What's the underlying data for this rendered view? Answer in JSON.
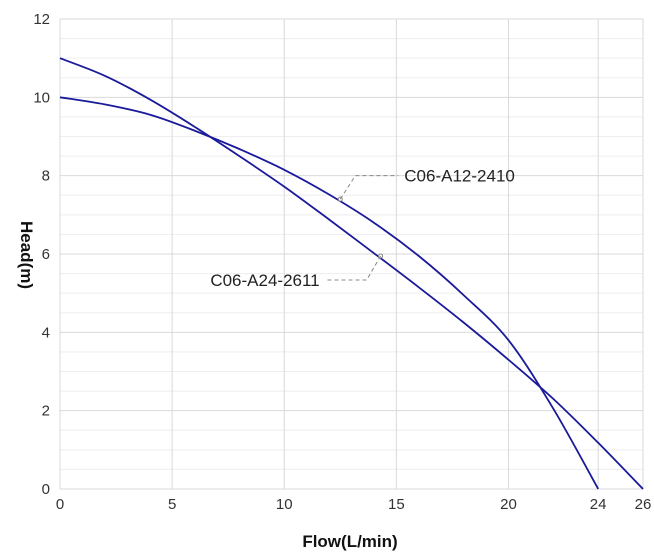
{
  "chart_data": {
    "type": "line",
    "xlabel": "Flow(L/min)",
    "ylabel": "Head(m)",
    "xlim": [
      0,
      26
    ],
    "ylim": [
      0,
      12
    ],
    "x_ticks": [
      0,
      5,
      10,
      15,
      20,
      24,
      26
    ],
    "y_ticks": [
      0,
      2,
      4,
      6,
      8,
      10,
      12
    ],
    "grid": true,
    "colors": {
      "series": "#1a1a9a",
      "grid_major": "#d9d9d9",
      "grid_minor": "#eeeeee",
      "leader": "#888888"
    },
    "series": [
      {
        "name": "C06-A12-2410",
        "x": [
          0,
          2,
          4,
          6,
          8,
          10,
          12,
          14,
          16,
          18,
          20,
          22,
          24
        ],
        "y": [
          10,
          9.82,
          9.56,
          9.15,
          8.68,
          8.15,
          7.52,
          6.8,
          5.95,
          4.95,
          3.8,
          2.05,
          0
        ]
      },
      {
        "name": "C06-A24-2611",
        "x": [
          0,
          2,
          4,
          6,
          8,
          10,
          12,
          14,
          16,
          18,
          20,
          22,
          24,
          26
        ],
        "y": [
          11,
          10.55,
          9.95,
          9.25,
          8.5,
          7.72,
          6.88,
          6.02,
          5.15,
          4.25,
          3.3,
          2.3,
          1.18,
          0
        ]
      }
    ],
    "annotations": [
      {
        "series": "C06-A12-2410",
        "label": "C06-A12-2410",
        "at_x": 12.5,
        "at_y": 7.4
      },
      {
        "series": "C06-A24-2611",
        "label": "C06-A24-2611",
        "at_x": 14.3,
        "at_y": 5.95
      }
    ]
  }
}
